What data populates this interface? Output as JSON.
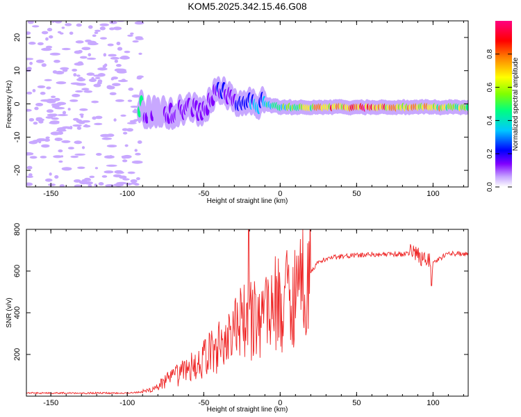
{
  "title": "KOM5.2025.342.15.46.G08",
  "chart_data": [
    {
      "type": "heatmap",
      "title": "KOM5.2025.342.15.46.G08",
      "xlabel": "Height of straight line (km)",
      "ylabel": "Frequency (Hz)",
      "xlim": [
        -166,
        123
      ],
      "ylim": [
        -25,
        25
      ],
      "xticks": [
        -150,
        -100,
        -50,
        0,
        50,
        100
      ],
      "yticks": [
        -20,
        -10,
        0,
        10,
        20
      ],
      "colorbar": {
        "label": "Normalized spectral amplitude",
        "range": [
          0,
          1
        ],
        "ticks": [
          0.0,
          0.2,
          0.4,
          0.6,
          0.8
        ],
        "colors": [
          "#ffffff",
          "#c8a8ff",
          "#8000ff",
          "#0000ff",
          "#00c8ff",
          "#00ff80",
          "#80ff00",
          "#ffff00",
          "#ff8000",
          "#ff0000",
          "#ff0080"
        ]
      },
      "ridge": {
        "x": [
          -90,
          -80,
          -70,
          -60,
          -50,
          -45,
          -40,
          -35,
          -30,
          -25,
          -20,
          -10,
          0,
          20,
          40,
          60,
          80,
          100,
          123
        ],
        "freq": [
          -3,
          -2,
          -3,
          -1,
          -2,
          2,
          5,
          4,
          0,
          1,
          0,
          0,
          -1,
          -1,
          -1,
          -1,
          -1,
          -1,
          -1
        ],
        "amplitude": [
          0.15,
          0.15,
          0.18,
          0.18,
          0.15,
          0.2,
          0.25,
          0.22,
          0.2,
          0.3,
          0.35,
          0.4,
          0.5,
          0.65,
          0.8,
          0.85,
          0.7,
          0.7,
          0.55
        ]
      }
    },
    {
      "type": "line",
      "xlabel": "Height of straight line (km)",
      "ylabel": "SNR (v/v)",
      "xlim": [
        -166,
        123
      ],
      "ylim": [
        0,
        800
      ],
      "xticks": [
        -150,
        -100,
        -50,
        0,
        50,
        100
      ],
      "yticks": [
        200,
        400,
        600,
        800
      ],
      "series": [
        {
          "name": "SNR",
          "color": "#ee2222",
          "x": [
            -166,
            -140,
            -120,
            -100,
            -90,
            -85,
            -80,
            -75,
            -70,
            -65,
            -60,
            -55,
            -50,
            -45,
            -40,
            -35,
            -30,
            -25,
            -20,
            -15,
            -10,
            -5,
            0,
            5,
            10,
            15,
            20,
            25,
            30,
            40,
            50,
            60,
            70,
            80,
            85,
            90,
            95,
            100,
            110,
            123
          ],
          "y": [
            15,
            15,
            15,
            15,
            20,
            30,
            50,
            70,
            90,
            110,
            130,
            150,
            180,
            210,
            240,
            280,
            320,
            340,
            360,
            370,
            420,
            440,
            450,
            480,
            520,
            560,
            600,
            640,
            660,
            670,
            675,
            680,
            680,
            680,
            690,
            680,
            660,
            640,
            685,
            680
          ]
        }
      ]
    }
  ]
}
